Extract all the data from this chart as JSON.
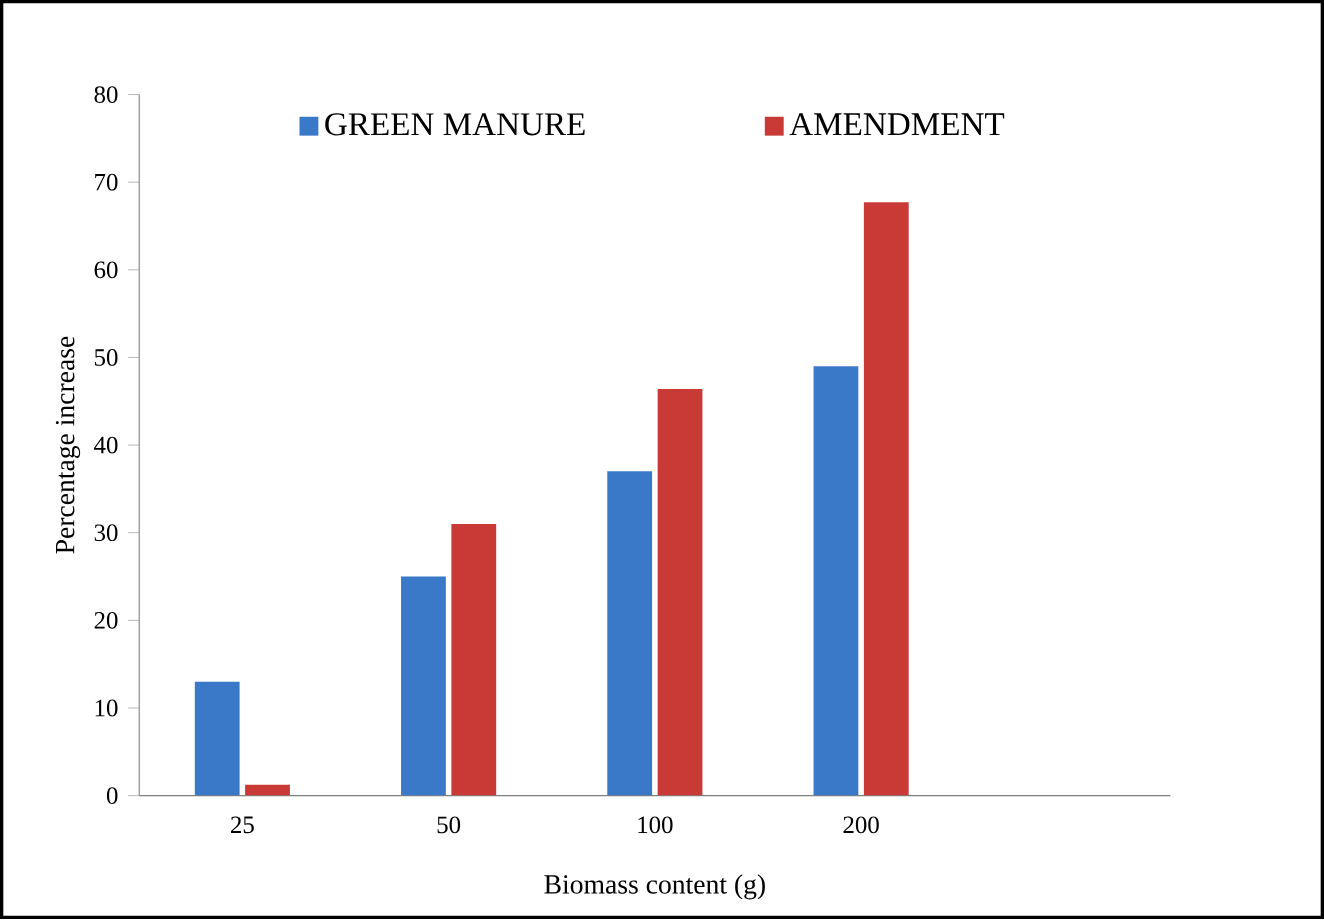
{
  "chart_data": {
    "type": "bar",
    "xlabel": "Biomass content (g)",
    "ylabel": "Percentage increase",
    "categories": [
      "25",
      "50",
      "100",
      "200",
      null
    ],
    "series": [
      {
        "name": "GREEN MANURE",
        "color": "#3a78c8",
        "values": [
          13,
          25,
          37,
          49,
          null
        ]
      },
      {
        "name": "AMENDMENT",
        "color": "#c93a36",
        "values": [
          1.25,
          31,
          46.4,
          67.7,
          null
        ]
      }
    ],
    "ylim": [
      0,
      80
    ],
    "yticks": [
      0,
      10,
      20,
      30,
      40,
      50,
      60,
      70,
      80
    ],
    "legend": "top",
    "grid": false
  }
}
